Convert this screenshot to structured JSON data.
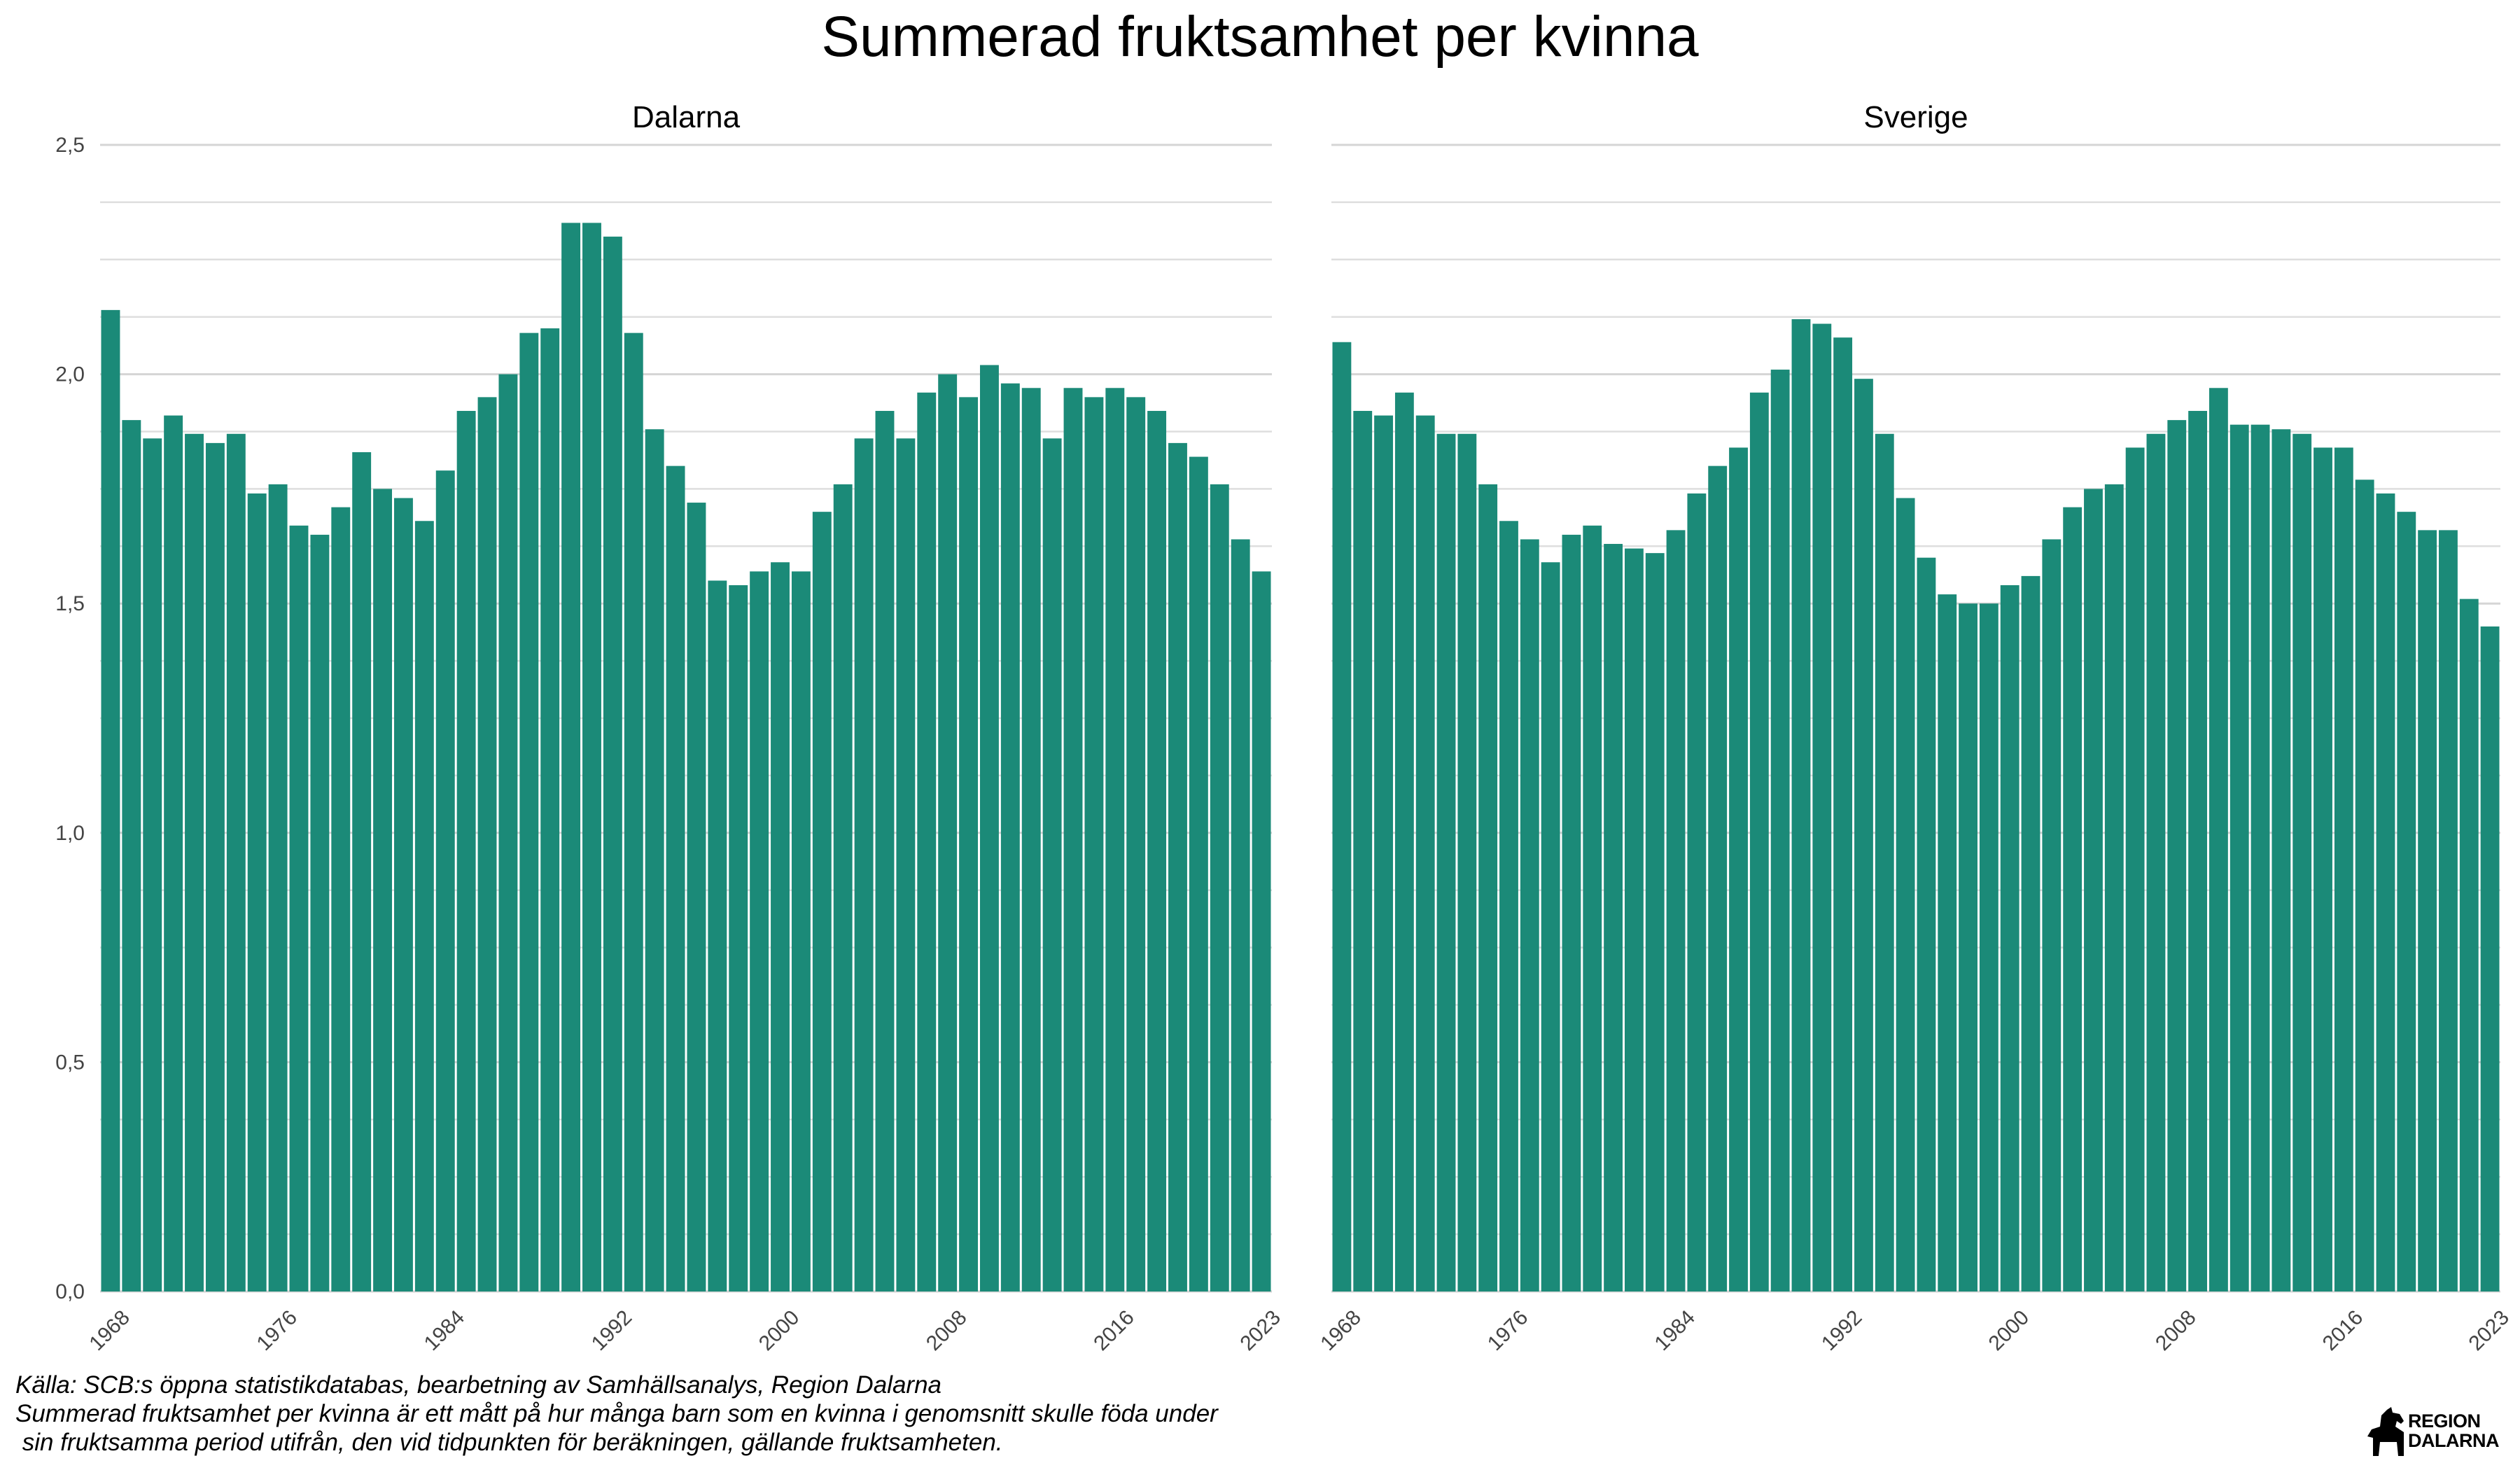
{
  "chart_data": {
    "type": "bar",
    "title": "Summerad fruktsamhet per kvinna",
    "xlabel": "",
    "ylabel": "",
    "ylim": [
      0,
      2.5
    ],
    "y_ticks": [
      "0,0",
      "0,5",
      "1,0",
      "1,5",
      "2,0",
      "2,5"
    ],
    "x_tick_labels": [
      "1968",
      "1976",
      "1984",
      "1992",
      "2000",
      "2008",
      "2016",
      "2023"
    ],
    "bar_color": "#1b8a78",
    "grid": true,
    "x": [
      1968,
      1969,
      1970,
      1971,
      1972,
      1973,
      1974,
      1975,
      1976,
      1977,
      1978,
      1979,
      1980,
      1981,
      1982,
      1983,
      1984,
      1985,
      1986,
      1987,
      1988,
      1989,
      1990,
      1991,
      1992,
      1993,
      1994,
      1995,
      1996,
      1997,
      1998,
      1999,
      2000,
      2001,
      2002,
      2003,
      2004,
      2005,
      2006,
      2007,
      2008,
      2009,
      2010,
      2011,
      2012,
      2013,
      2014,
      2015,
      2016,
      2017,
      2018,
      2019,
      2020,
      2021,
      2022,
      2023
    ],
    "panels": [
      {
        "name": "Dalarna",
        "values": [
          2.14,
          1.9,
          1.86,
          1.91,
          1.87,
          1.85,
          1.87,
          1.74,
          1.76,
          1.67,
          1.65,
          1.71,
          1.83,
          1.75,
          1.73,
          1.68,
          1.79,
          1.92,
          1.95,
          2.0,
          2.09,
          2.1,
          2.33,
          2.33,
          2.3,
          2.09,
          1.88,
          1.8,
          1.72,
          1.55,
          1.54,
          1.57,
          1.59,
          1.57,
          1.7,
          1.76,
          1.86,
          1.92,
          1.86,
          1.96,
          2.0,
          1.95,
          2.02,
          1.98,
          1.97,
          1.86,
          1.97,
          1.95,
          1.97,
          1.95,
          1.92,
          1.85,
          1.82,
          1.76,
          1.64,
          1.57
        ]
      },
      {
        "name": "Sverige",
        "values": [
          2.07,
          1.92,
          1.91,
          1.96,
          1.91,
          1.87,
          1.87,
          1.76,
          1.68,
          1.64,
          1.59,
          1.65,
          1.67,
          1.63,
          1.62,
          1.61,
          1.66,
          1.74,
          1.8,
          1.84,
          1.96,
          2.01,
          2.12,
          2.11,
          2.08,
          1.99,
          1.87,
          1.73,
          1.6,
          1.52,
          1.5,
          1.5,
          1.54,
          1.56,
          1.64,
          1.71,
          1.75,
          1.76,
          1.84,
          1.87,
          1.9,
          1.92,
          1.97,
          1.89,
          1.89,
          1.88,
          1.87,
          1.84,
          1.84,
          1.77,
          1.74,
          1.7,
          1.66,
          1.66,
          1.51,
          1.45
        ]
      }
    ]
  },
  "caption": {
    "line1": "Källa: SCB:s öppna statistikdatabas, bearbetning av Samhällsanalys, Region Dalarna",
    "line2": "Summerad fruktsamhet per kvinna är ett mått på hur många barn som en kvinna i genomsnitt skulle föda under",
    "line3": " sin fruktsamma period utifrån, den vid tidpunkten för beräkningen, gällande fruktsamheten."
  },
  "logo": {
    "line1": "REGION",
    "line2": "DALARNA",
    "icon": "dala-horse-icon"
  }
}
